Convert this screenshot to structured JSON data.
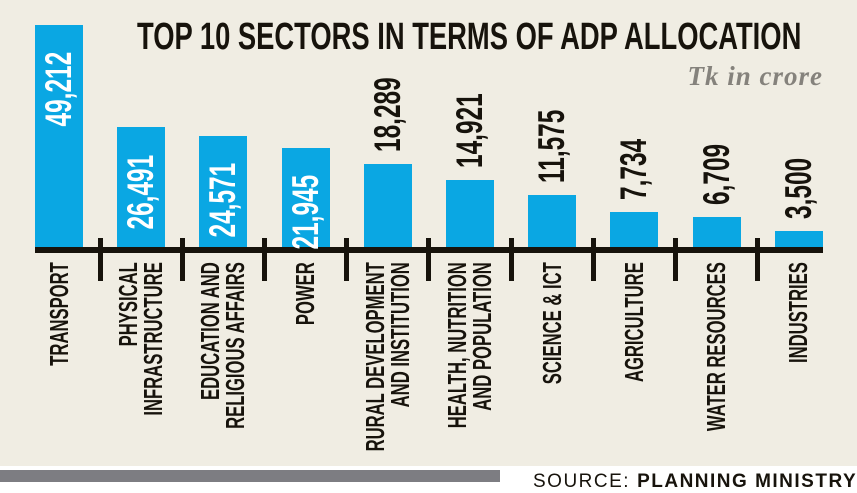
{
  "title": "TOP 10 SECTORS IN TERMS OF ADP ALLOCATION",
  "unit_note": "Tk in crore",
  "source": {
    "prefix": "SOURCE:",
    "name": "PLANNING MINISTRY"
  },
  "colors": {
    "page_white": "#ffffff",
    "background_panel": "#f0ede3",
    "bar_blue": "#0aa7e3",
    "ink": "#17130c",
    "value_label_inside": "#ffffff",
    "unit_note_gray": "#85827c",
    "footer_stripe_gray": "#7d7d82"
  },
  "chart_data": {
    "type": "bar",
    "title": "TOP 10 SECTORS IN TERMS OF ADP ALLOCATION",
    "unit": "Tk in crore",
    "source": "PLANNING MINISTRY",
    "categories": [
      "TRANSPORT",
      "PHYSICAL\nINFRASTRUCTURE",
      "EDUCATION AND\nRELIGIOUS AFFAIRS",
      "POWER",
      "RURAL DEVELOPMENT\nAND INSTITUTION",
      "HEALTH, NUTRITION\nAND POPULATION",
      "SCIENCE & ICT",
      "AGRICULTURE",
      "WATER RESOURCES",
      "INDUSTRIES"
    ],
    "values": [
      49212,
      26491,
      24571,
      21945,
      18289,
      14921,
      11575,
      7734,
      6709,
      3500
    ],
    "value_labels": [
      "49,212",
      "26,491",
      "24,571",
      "21,945",
      "18,289",
      "14,921",
      "11,575",
      "7,734",
      "6,709",
      "3,500"
    ],
    "xlabel": "",
    "ylabel": "",
    "ylim": [
      0,
      49212
    ],
    "grid": false,
    "legend": false,
    "bar_orientation": "vertical",
    "category_label_rotation_deg": 90,
    "value_labels_inside_bar_count": 4
  }
}
